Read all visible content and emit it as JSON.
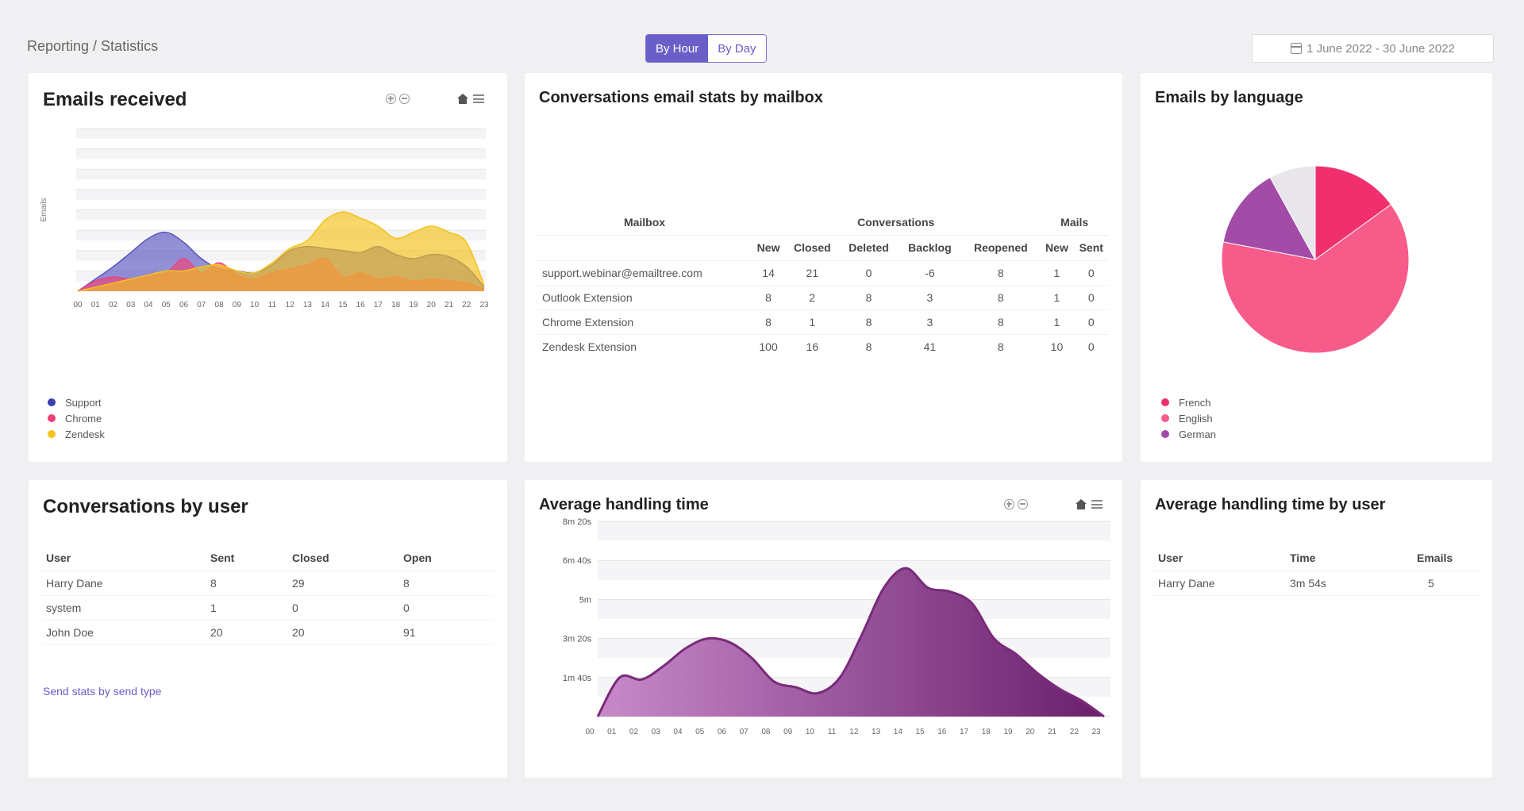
{
  "header": {
    "breadcrumb": "Reporting / Statistics",
    "toggle": {
      "by_hour": "By Hour",
      "by_day": "By Day"
    },
    "date_range": "1 June 2022 - 30 June 2022"
  },
  "emails_received": {
    "title": "Emails received",
    "legend": [
      {
        "name": "Support",
        "color": "#3f3fb0"
      },
      {
        "name": "Chrome",
        "color": "#f0407a"
      },
      {
        "name": "Zendesk",
        "color": "#f5c21a"
      }
    ]
  },
  "mailbox_stats": {
    "title": "Conversations email stats by mailbox",
    "group_headers": {
      "mailbox": "Mailbox",
      "conversations": "Conversations",
      "mails": "Mails"
    },
    "columns": [
      "New",
      "Closed",
      "Deleted",
      "Backlog",
      "Reopened",
      "New",
      "Sent"
    ],
    "rows": [
      {
        "mailbox": "support.webinar@emailtree.com",
        "values": [
          "14",
          "21",
          "0",
          "-6",
          "8",
          "1",
          "0"
        ]
      },
      {
        "mailbox": "Outlook Extension",
        "values": [
          "8",
          "2",
          "8",
          "3",
          "8",
          "1",
          "0"
        ]
      },
      {
        "mailbox": "Chrome Extension",
        "values": [
          "8",
          "1",
          "8",
          "3",
          "8",
          "1",
          "0"
        ]
      },
      {
        "mailbox": "Zendesk Extension",
        "values": [
          "100",
          "16",
          "8",
          "41",
          "8",
          "10",
          "0"
        ]
      }
    ]
  },
  "emails_by_language": {
    "title": "Emails by language",
    "legend": [
      {
        "name": "French",
        "color": "#f0306e"
      },
      {
        "name": "English",
        "color": "#f75b8a"
      },
      {
        "name": "German",
        "color": "#a24ca8"
      }
    ]
  },
  "conversations_by_user": {
    "title": "Conversations by user",
    "columns": [
      "User",
      "Sent",
      "Closed",
      "Open"
    ],
    "rows": [
      [
        "Harry Dane",
        "8",
        "29",
        "8"
      ],
      [
        "system",
        "1",
        "0",
        "0"
      ],
      [
        "John Doe",
        "20",
        "20",
        "91"
      ]
    ],
    "link": "Send stats by send type"
  },
  "average_handling_time": {
    "title": "Average handling time"
  },
  "aht_by_user": {
    "title": "Average handling time by user",
    "columns": [
      "User",
      "Time",
      "Emails"
    ],
    "rows": [
      [
        "Harry Dane",
        "3m 54s",
        "5"
      ]
    ]
  },
  "chart_data": [
    {
      "type": "area",
      "title": "Emails received",
      "ylabel": "Emails",
      "x": [
        "00",
        "01",
        "02",
        "03",
        "04",
        "05",
        "06",
        "07",
        "08",
        "09",
        "10",
        "11",
        "12",
        "13",
        "14",
        "15",
        "16",
        "17",
        "18",
        "19",
        "20",
        "21",
        "22",
        "23"
      ],
      "ylim": [
        0,
        8
      ],
      "series": [
        {
          "name": "Support",
          "color": "#5a55c0",
          "values": [
            0,
            0.6,
            1.2,
            1.9,
            2.6,
            2.9,
            2.4,
            1.6,
            1.1,
            1.0,
            0.9,
            1.3,
            2.0,
            2.2,
            2.1,
            2.0,
            1.9,
            2.2,
            1.8,
            1.6,
            1.8,
            1.7,
            1.2,
            0.2
          ]
        },
        {
          "name": "Chrome",
          "color": "#f0407a",
          "values": [
            0,
            0.5,
            0.7,
            0.6,
            0.8,
            0.9,
            1.6,
            0.9,
            1.4,
            0.8,
            0.6,
            0.9,
            1.1,
            1.3,
            1.6,
            0.7,
            0.9,
            0.6,
            0.7,
            0.5,
            0.6,
            0.5,
            0.4,
            0.1
          ]
        },
        {
          "name": "Zendesk",
          "color": "#f5c21a",
          "values": [
            0,
            0.2,
            0.4,
            0.6,
            0.8,
            1.0,
            1.0,
            1.2,
            1.3,
            1.0,
            0.9,
            1.4,
            2.1,
            2.5,
            3.5,
            3.9,
            3.6,
            3.2,
            2.6,
            2.9,
            3.2,
            2.9,
            2.4,
            0.3
          ]
        }
      ]
    },
    {
      "type": "pie",
      "title": "Emails by language",
      "slices": [
        {
          "name": "French",
          "value": 15,
          "color": "#f0306e"
        },
        {
          "name": "English",
          "value": 63,
          "color": "#f75b8a"
        },
        {
          "name": "German",
          "value": 14,
          "color": "#a24ca8"
        },
        {
          "name": "",
          "value": 8,
          "color": "#e8e6ea"
        }
      ]
    },
    {
      "type": "area",
      "title": "Average handling time",
      "x": [
        "00",
        "01",
        "02",
        "03",
        "04",
        "05",
        "06",
        "07",
        "08",
        "09",
        "10",
        "11",
        "12",
        "13",
        "14",
        "15",
        "16",
        "17",
        "18",
        "19",
        "20",
        "21",
        "22",
        "23"
      ],
      "yticks": [
        "",
        "1m 40s",
        "3m 20s",
        "5m",
        "6m 40s",
        "8m 20s"
      ],
      "ylim": [
        0,
        500
      ],
      "series": [
        {
          "name": "",
          "color": "#7a2a7a",
          "values": [
            0,
            100,
            95,
            130,
            175,
            200,
            190,
            150,
            90,
            75,
            60,
            100,
            210,
            330,
            380,
            330,
            320,
            290,
            200,
            160,
            110,
            70,
            40,
            0
          ]
        }
      ]
    }
  ]
}
